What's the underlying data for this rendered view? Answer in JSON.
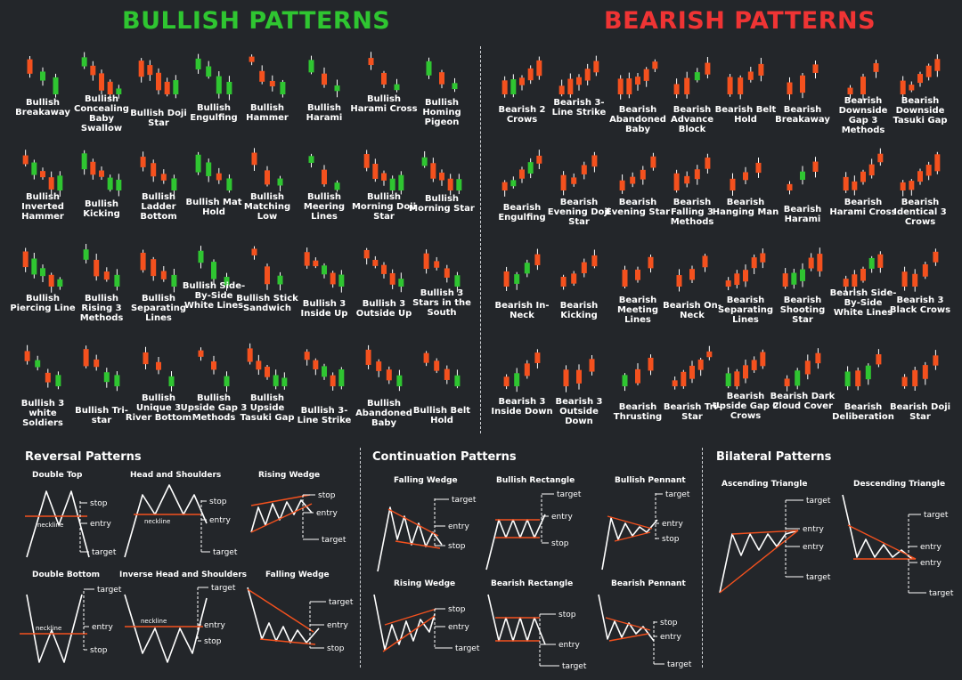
{
  "colors": {
    "bull": "#2fc531",
    "bear": "#f4511e",
    "wick": "#ffffff",
    "line": "#ffffff",
    "guide": "#f4511e",
    "background": "#23262a"
  },
  "titles": {
    "bullish": "BULLISH PATTERNS",
    "bearish": "BEARISH PATTERNS"
  },
  "bullish_patterns": [
    "Bullish Breakaway",
    "Bullish Concealing Baby Swallow",
    "Bullish Doji Star",
    "Bullish Engulfing",
    "Bullish Hammer",
    "Bullish Harami",
    "Bullish Harami Cross",
    "Bullish Homing Pigeon",
    "Bullish Inverted Hammer",
    "Bullish Kicking",
    "Bullish Ladder Bottom",
    "Bullish Mat Hold",
    "Bullish Matching Low",
    "Bullish Meering Lines",
    "Bullish Morning Doji Star",
    "Bullish Morning Star",
    "Bullish Piercing Line",
    "Bullish Rising 3 Methods",
    "Bullish Separating Lines",
    "Bullish Side-By-Side White Lines",
    "Bullish Stick Sandwich",
    "Bullish 3 Inside Up",
    "Bullish 3 Outside Up",
    "Bullish 3 Stars in the South",
    "Bullish 3 white Soldiers",
    "Bullish Tri-star",
    "Bullish Unique 3 River Bottom",
    "Bullish Upside Gap 3 Methods",
    "Bullish Upside Tasuki Gap",
    "Bullish 3-Line Strike",
    "Bullish Abandoned Baby",
    "Bullish Belt Hold"
  ],
  "bearish_patterns": [
    "Bearish 2 Crows",
    "Bearish 3-Line Strike",
    "Bearish Abandoned Baby",
    "Bearish Advance Block",
    "Bearish Belt Hold",
    "Bearish Breakaway",
    "Bearish Downside Gap 3 Methods",
    "Bearish Downside Tasuki Gap",
    "Bearish Engulfing",
    "Bearish Evening Doji Star",
    "Bearish Evening Star",
    "Bearish Falling 3 Methods",
    "Bearish Hanging Man",
    "Bearish Harami",
    "Bearish Harami Cross",
    "Bearish Identical 3 Crows",
    "Bearish In- Neck",
    "Bearish Kicking",
    "Bearish Meeting Lines",
    "Bearish On-Neck",
    "Bearish Separating Lines",
    "Bearish Shooting Star",
    "Bearish Side-By-Side White Lines",
    "Bearish 3 Black Crows",
    "Bearish 3 Inside Down",
    "Bearish 3 Outside Down",
    "Bearish Thrusting",
    "Bearish Tri-Star",
    "Bearish Upside Gap 2 Crows",
    "Bearish Dark Cloud Cover",
    "Bearish Deliberation",
    "Bearish Doji Star"
  ],
  "sections": {
    "reversal": {
      "title": "Reversal Patterns",
      "items": [
        "Double Top",
        "Head and Shoulders",
        "Rising Wedge",
        "Double Bottom",
        "Inverse Head and Shoulders",
        "Falling Wedge"
      ]
    },
    "continuation": {
      "title": "Continuation Patterns",
      "items": [
        "Falling Wedge",
        "Bullish Rectangle",
        "Bullish Pennant",
        "Rising Wedge",
        "Bearish Rectangle",
        "Bearish Pennant"
      ]
    },
    "bilateral": {
      "title": "Bilateral Patterns",
      "items": [
        "Ascending Triangle",
        "Descending Triangle"
      ]
    }
  },
  "labels": {
    "stop": "stop",
    "entry": "entry",
    "target": "target",
    "neckline": "neckline"
  }
}
